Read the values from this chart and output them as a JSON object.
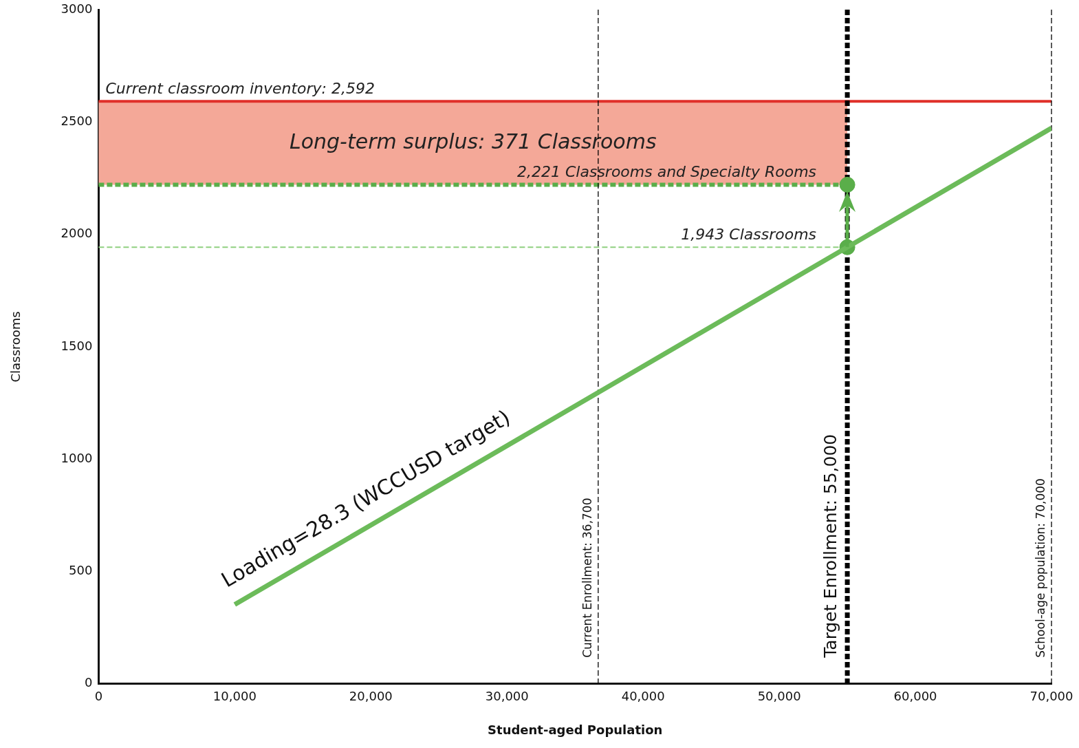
{
  "chart_data": {
    "type": "line",
    "xlabel": "Student-aged Population",
    "ylabel": "Classrooms",
    "xlim": [
      0,
      70000
    ],
    "xticks": [
      0,
      {
        "value": 10000,
        "label": "10,000"
      },
      {
        "value": 20000,
        "label": "20,000"
      },
      {
        "value": 30000,
        "label": "30,000"
      },
      {
        "value": 40000,
        "label": "40,000"
      },
      {
        "value": 50000,
        "label": "50,000"
      },
      {
        "value": 60000,
        "label": "60,000"
      },
      {
        "value": 70000,
        "label": "70,000"
      }
    ],
    "ylim": [
      0,
      3000
    ],
    "yticks": [
      0,
      500,
      1000,
      1500,
      2000,
      2500,
      3000
    ],
    "grid": false,
    "legend": false,
    "series": [
      {
        "color": "#6cbb5a",
        "x": [
          10000,
          55000,
          70000
        ],
        "values": [
          353,
          1943,
          2473
        ],
        "marker": "none"
      },
      {
        "type": "scatter",
        "color": "#5aae4a",
        "x": [
          55000,
          55000
        ],
        "values": [
          1943,
          2221
        ],
        "marker": "circle"
      }
    ],
    "ref_lines": [
      {
        "axis": "y",
        "value": 2592,
        "label": "Current classroom inventory: 2,592",
        "color": "#e0302a",
        "line_style": "solid"
      },
      {
        "axis": "y",
        "value": 2221,
        "label": "2,221 Classrooms and Specialty Rooms",
        "color": "#5aae4a",
        "line_style": "dashed"
      },
      {
        "axis": "y",
        "value": 1943,
        "label": "1,943 Classrooms",
        "color": "#8fd07f",
        "line_style": "dashed"
      },
      {
        "axis": "x",
        "value": 36700,
        "label": "Current Enrollment: 36,700",
        "color": "#000000",
        "line_style": "dashed"
      },
      {
        "axis": "x",
        "value": 55000,
        "label": "Target Enrollment: 55,000",
        "color": "#000000",
        "line_style": "dashed"
      },
      {
        "axis": "x",
        "value": 70000,
        "label": "School-age population: 70,000",
        "color": "#000000",
        "line_style": "dashed"
      }
    ],
    "bands": [
      {
        "axis": "y",
        "from": 2221,
        "to": 2592,
        "label": "Long-term surplus: 371 Classrooms",
        "color": "#f4a898"
      }
    ],
    "annotations": [
      {
        "text": "Loading=28.3 (WCCUSD target)",
        "x": 10000,
        "y": 353
      }
    ]
  }
}
